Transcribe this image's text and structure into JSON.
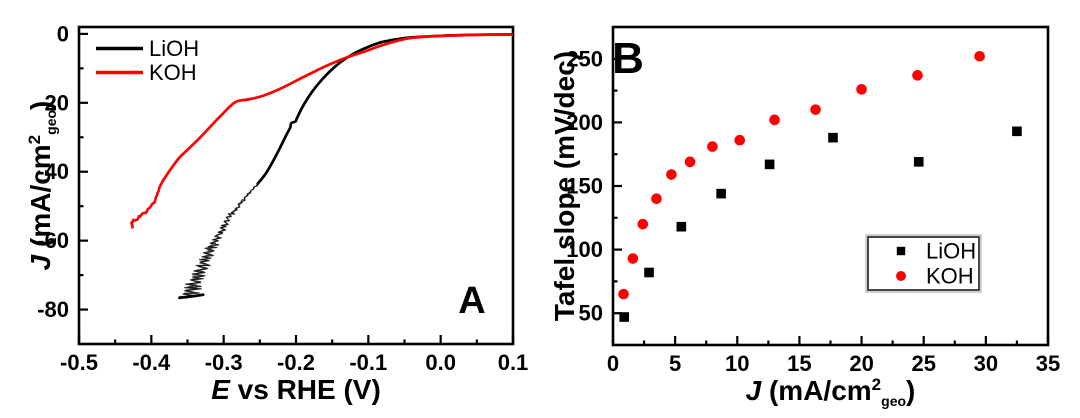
{
  "figure": {
    "background": "#ffffff",
    "panels": [
      {
        "letter": "A"
      },
      {
        "letter": "B"
      }
    ]
  },
  "chart_data": [
    {
      "panel_label": "A",
      "type": "line",
      "xlabel_rich": [
        {
          "t": "E",
          "i": 1
        },
        {
          "t": " vs RHE (V)"
        }
      ],
      "ylabel_rich": [
        {
          "t": "J",
          "i": 1
        },
        {
          "t": " (mA/cm"
        },
        {
          "t": "2",
          "sup": 1
        },
        {
          "t": "geo",
          "sub": 1
        },
        {
          "t": ")"
        }
      ],
      "xlim": [
        -0.5,
        0.1
      ],
      "ylim": [
        -90,
        2
      ],
      "xticks": {
        "values": [
          -0.5,
          -0.4,
          -0.3,
          -0.2,
          -0.1,
          0.0,
          0.1
        ],
        "labels": [
          "-0.5",
          "-0.4",
          "-0.3",
          "-0.2",
          "-0.1",
          "0.0",
          "0.1"
        ],
        "minor_step": 0.05
      },
      "yticks": {
        "values": [
          0,
          -20,
          -40,
          -60,
          -80
        ],
        "labels": [
          "0",
          "-20",
          "-40",
          "-60",
          "-80"
        ],
        "minor_step": 10
      },
      "grid": false,
      "legend": {
        "position": "top-left",
        "entries": [
          {
            "name": "LiOH",
            "color": "#000000"
          },
          {
            "name": "KOH",
            "color": "#fe0000"
          }
        ]
      },
      "series": [
        {
          "name": "LiOH",
          "color": "#000000",
          "smooth": [
            [
              0.1,
              -0.15
            ],
            [
              0.04,
              -0.3
            ],
            [
              0.0,
              -0.55
            ],
            [
              -0.04,
              -1.0
            ],
            [
              -0.065,
              -1.7
            ],
            [
              -0.085,
              -2.6
            ],
            [
              -0.105,
              -4.2
            ],
            [
              -0.125,
              -6.3
            ],
            [
              -0.145,
              -9.3
            ],
            [
              -0.163,
              -13.0
            ],
            [
              -0.178,
              -16.9
            ],
            [
              -0.191,
              -21.2
            ],
            [
              -0.199,
              -24.6
            ],
            [
              -0.2005,
              -25.4
            ],
            [
              -0.2065,
              -25.9
            ],
            [
              -0.208,
              -27.2
            ],
            [
              -0.213,
              -29.2
            ],
            [
              -0.222,
              -33.0
            ],
            [
              -0.232,
              -37.0
            ],
            [
              -0.242,
              -40.6
            ],
            [
              -0.253,
              -43.5
            ]
          ],
          "noise_spine": [
            [
              -0.253,
              -43.5
            ],
            [
              -0.273,
              -48.2
            ],
            [
              -0.292,
              -53.0
            ],
            [
              -0.305,
              -57.8
            ],
            [
              -0.319,
              -62.7
            ],
            [
              -0.3285,
              -67.0
            ],
            [
              -0.338,
              -71.3
            ],
            [
              -0.347,
              -75.2
            ],
            [
              -0.352,
              -76.6
            ]
          ],
          "end_segment": [
            [
              -0.3285,
              -75.7
            ],
            [
              -0.345,
              -76.2
            ],
            [
              -0.361,
              -76.6
            ]
          ]
        },
        {
          "name": "KOH",
          "color": "#fe0000",
          "smooth": [
            [
              0.1,
              -0.2
            ],
            [
              0.05,
              -0.3
            ],
            [
              0.0,
              -0.6
            ],
            [
              -0.038,
              -1.1
            ],
            [
              -0.06,
              -2.0
            ],
            [
              -0.084,
              -3.5
            ],
            [
              -0.105,
              -5.1
            ],
            [
              -0.13,
              -6.85
            ],
            [
              -0.155,
              -9.0
            ],
            [
              -0.177,
              -11.2
            ],
            [
              -0.2,
              -13.6
            ],
            [
              -0.2225,
              -16.0
            ],
            [
              -0.245,
              -17.9
            ],
            [
              -0.263,
              -18.9
            ],
            [
              -0.2785,
              -19.4
            ],
            [
              -0.2847,
              -19.9
            ],
            [
              -0.292,
              -21.2
            ],
            [
              -0.3,
              -22.9
            ],
            [
              -0.3147,
              -26.1
            ],
            [
              -0.329,
              -29.3
            ],
            [
              -0.3447,
              -32.6
            ],
            [
              -0.3607,
              -35.8
            ],
            [
              -0.372,
              -38.9
            ],
            [
              -0.3838,
              -42.5
            ]
          ],
          "wiggle_tail": [
            [
              -0.3838,
              -42.5
            ],
            [
              -0.39,
              -45.5
            ],
            [
              -0.3929,
              -47.6
            ],
            [
              -0.398,
              -49.3
            ],
            [
              -0.404,
              -50.8
            ],
            [
              -0.41,
              -52.0
            ],
            [
              -0.417,
              -53.3
            ],
            [
              -0.4235,
              -54.1
            ],
            [
              -0.4275,
              -54.8
            ],
            [
              -0.426,
              -56.2
            ]
          ]
        }
      ]
    },
    {
      "panel_label": "B",
      "type": "scatter",
      "xlabel_rich": [
        {
          "t": "J",
          "i": 1
        },
        {
          "t": " (mA/cm"
        },
        {
          "t": "2",
          "sup": 1
        },
        {
          "t": "geo",
          "sub": 1
        },
        {
          "t": ")"
        }
      ],
      "ylabel_rich": [
        {
          "t": "Tafel slope (mV/dec)"
        }
      ],
      "xlim": [
        0,
        35
      ],
      "ylim": [
        25,
        275
      ],
      "xticks": {
        "values": [
          0,
          5,
          10,
          15,
          20,
          25,
          30,
          35
        ],
        "labels": [
          "0",
          "5",
          "10",
          "15",
          "20",
          "25",
          "30",
          "35"
        ],
        "minor_step": 2.5
      },
      "yticks": {
        "values": [
          50,
          100,
          150,
          200,
          250
        ],
        "labels": [
          "50",
          "100",
          "150",
          "200",
          "250"
        ],
        "minor_step": 25
      },
      "grid": false,
      "legend": {
        "position": "center-right-box",
        "entries": [
          {
            "name": "LiOH",
            "marker": "square",
            "color": "#000000"
          },
          {
            "name": "KOH",
            "marker": "circle",
            "color": "#fe0000"
          }
        ]
      },
      "series": [
        {
          "name": "LiOH",
          "marker": "square",
          "color": "#000000",
          "points": [
            [
              0.9,
              47
            ],
            [
              2.9,
              82
            ],
            [
              5.5,
              118
            ],
            [
              8.7,
              144
            ],
            [
              12.6,
              167
            ],
            [
              17.7,
              188
            ],
            [
              24.6,
              169
            ],
            [
              32.5,
              193
            ]
          ]
        },
        {
          "name": "KOH",
          "marker": "circle",
          "color": "#fe0000",
          "points": [
            [
              0.85,
              65
            ],
            [
              1.6,
              93
            ],
            [
              2.4,
              120
            ],
            [
              3.5,
              140
            ],
            [
              4.7,
              159
            ],
            [
              6.2,
              169
            ],
            [
              8.0,
              181
            ],
            [
              10.2,
              186
            ],
            [
              13.0,
              202
            ],
            [
              16.3,
              210
            ],
            [
              20.0,
              226
            ],
            [
              24.5,
              237
            ],
            [
              29.5,
              252
            ]
          ]
        }
      ]
    }
  ]
}
